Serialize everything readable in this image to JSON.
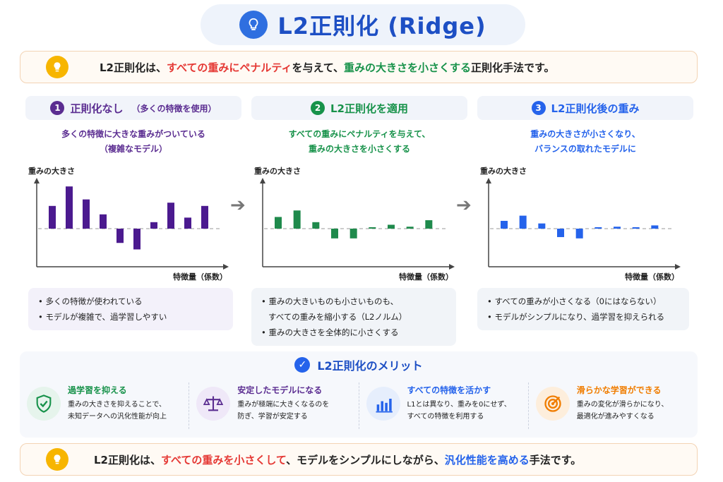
{
  "title": "L2正則化 (Ridge)",
  "intro": {
    "p1": "L2正則化は、",
    "p2": "すべての重みにペナルティ",
    "p3": "を与えて、",
    "p4": "重みの大きさを小さくする",
    "p5": "正則化手法です。"
  },
  "columns": [
    {
      "num": "1",
      "heading": "正則化なし",
      "sub": "（多くの特徴を使用）",
      "desc1": "多くの特徴に大きな重みがついている",
      "desc2": "（複雑なモデル）",
      "ylabel": "重みの大きさ",
      "xlabel": "特徴量（係数）",
      "bullets": [
        "多くの特徴が使われている",
        "モデルが複雑で、過学習しやすい"
      ]
    },
    {
      "num": "2",
      "heading": "L2正則化を適用",
      "desc1": "すべての重みにペナルティを与えて、",
      "desc2": "重みの大きさを小さくする",
      "ylabel": "重みの大きさ",
      "xlabel": "特徴量（係数）",
      "bullets": [
        "重みの大きいものも小さいものも、",
        "すべての重みを縮小する（L2ノルム）",
        "重みの大きさを全体的に小さくする"
      ]
    },
    {
      "num": "3",
      "heading": "L2正則化後の重み",
      "desc1": "重みの大きさが小さくなり、",
      "desc2": "バランスの取れたモデルに",
      "ylabel": "重みの大きさ",
      "xlabel": "特徴量（係数）",
      "bullets": [
        "すべての重みが小さくなる（0にはならない）",
        "モデルがシンプルになり、過学習を抑えられる"
      ]
    }
  ],
  "chart_data": [
    {
      "type": "bar",
      "ylabel": "重みの大きさ",
      "xlabel": "特徴量（係数）",
      "values": [
        3.5,
        6.5,
        4.5,
        2.2,
        -2.2,
        -3.2,
        1.0,
        4.0,
        1.7,
        3.5
      ],
      "color": "#4b1a8f"
    },
    {
      "type": "bar",
      "ylabel": "重みの大きさ",
      "xlabel": "特徴量（係数）",
      "values": [
        1.8,
        2.8,
        1.0,
        -1.5,
        -1.5,
        0.1,
        0.6,
        0.3,
        1.3
      ],
      "color": "#1f8a4c"
    },
    {
      "type": "bar",
      "ylabel": "重みの大きさ",
      "xlabel": "特徴量（係数）",
      "values": [
        1.2,
        2.0,
        0.8,
        -1.3,
        -1.5,
        0.1,
        0.3,
        0.1,
        0.5
      ],
      "color": "#2563eb"
    }
  ],
  "merit": {
    "heading": "L2正則化のメリット",
    "items": [
      {
        "title": "過学習を抑える",
        "line1": "重みの大きさを抑えることで、",
        "line2": "未知データへの汎化性能が向上",
        "color": "#17924a"
      },
      {
        "title": "安定したモデルになる",
        "line1": "重みが極端に大きくなるのを",
        "line2": "防ぎ、学習が安定する",
        "color": "#5b2d91"
      },
      {
        "title": "すべての特徴を活かす",
        "line1": "L1とは異なり、重みを0にせず、",
        "line2": "すべての特徴を利用する",
        "color": "#2563eb"
      },
      {
        "title": "滑らかな学習ができる",
        "line1": "重みの変化が滑らかになり、",
        "line2": "最適化が進みやすくなる",
        "color": "#f07d00"
      }
    ]
  },
  "summary": {
    "p1": "L2正則化は、",
    "p2": "すべての重みを小さくして",
    "p3": "、モデルをシンプルにしながら、",
    "p4": "汎化性能を高める",
    "p5": "手法です。"
  },
  "colors": {
    "accent": "#1d4fc4",
    "red": "#e53935",
    "green": "#17924a",
    "purple": "#5b2d91",
    "orange": "#f07d00"
  }
}
